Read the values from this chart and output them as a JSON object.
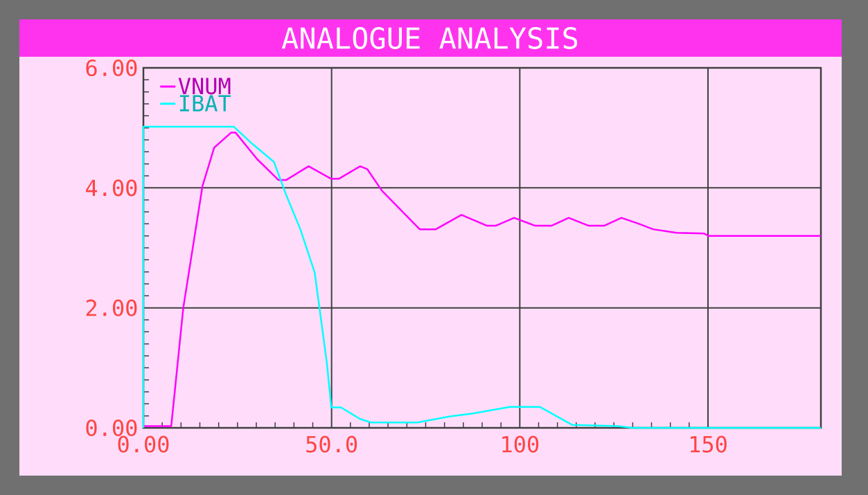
{
  "chart_data": {
    "type": "line",
    "title": "ANALOGUE ANALYSIS",
    "xlim": [
      0,
      180
    ],
    "ylim": [
      0,
      6
    ],
    "xticks": [
      {
        "value": 0,
        "label": "0.00"
      },
      {
        "value": 50,
        "label": "50.0"
      },
      100,
      150
    ],
    "yticks": [
      {
        "value": 0,
        "label": "0.00"
      },
      {
        "value": 2,
        "label": "2.00"
      },
      {
        "value": 4,
        "label": "4.00"
      },
      {
        "value": 6,
        "label": "6.00"
      }
    ],
    "grid": true,
    "legend": "top left",
    "marker": "none",
    "line_style": "solid",
    "series": [
      {
        "name": "VNUM",
        "color": "#ff00ff",
        "x": [
          0,
          7.4,
          10.6,
          15.7,
          18.8,
          23.3,
          24.5,
          30.2,
          35.9,
          37.9,
          43.9,
          49.9,
          51.9,
          57.6,
          59.5,
          63.4,
          73.4,
          77.7,
          84.5,
          91.2,
          93.7,
          98.5,
          104,
          108.5,
          113,
          118.2,
          122.5,
          127,
          131.7,
          135.4,
          141.6,
          148.9,
          150.1,
          180
        ],
        "values": [
          0.03,
          0.03,
          2.0,
          4.03,
          4.67,
          4.92,
          4.92,
          4.48,
          4.13,
          4.13,
          4.36,
          4.15,
          4.15,
          4.36,
          4.31,
          3.95,
          3.31,
          3.31,
          3.55,
          3.37,
          3.37,
          3.5,
          3.37,
          3.37,
          3.5,
          3.37,
          3.37,
          3.5,
          3.4,
          3.31,
          3.25,
          3.24,
          3.2,
          3.2
        ]
      },
      {
        "name": "IBAT",
        "color": "#00ffff",
        "x": [
          0,
          0,
          24,
          29,
          34.7,
          38,
          41.7,
          45.5,
          46.8,
          48.7,
          49.6,
          49.9,
          52.5,
          57.5,
          60.5,
          72.8,
          81.4,
          87.5,
          97.4,
          105.3,
          113.9,
          126,
          129.9,
          180
        ],
        "values": [
          0,
          5.02,
          5.02,
          4.73,
          4.43,
          3.87,
          3.31,
          2.59,
          1.99,
          1.1,
          0.55,
          0.34,
          0.34,
          0.15,
          0.09,
          0.09,
          0.19,
          0.24,
          0.35,
          0.35,
          0.05,
          0.03,
          0,
          0
        ]
      }
    ]
  }
}
